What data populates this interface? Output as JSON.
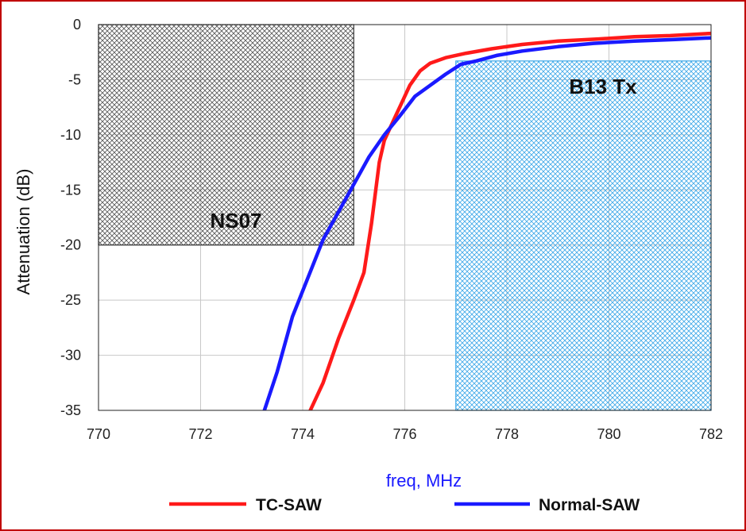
{
  "chart_data": {
    "type": "line",
    "title": "",
    "xlabel": "freq, MHz",
    "ylabel": "Attenuation (dB)",
    "xlim": [
      770,
      782
    ],
    "ylim": [
      -35,
      0
    ],
    "xticks": [
      770,
      772,
      774,
      776,
      778,
      780,
      782
    ],
    "yticks": [
      0,
      -5,
      -10,
      -15,
      -20,
      -25,
      -30,
      -35
    ],
    "grid": true,
    "legend_position": "bottom",
    "series": [
      {
        "name": "TC-SAW",
        "color": "#ff1a1a",
        "x": [
          774.15,
          774.4,
          774.7,
          775.0,
          775.2,
          775.35,
          775.5,
          775.6,
          775.8,
          775.95,
          776.1,
          776.3,
          776.5,
          776.8,
          777.2,
          777.7,
          778.3,
          779.0,
          779.8,
          780.5,
          781.2,
          782.0
        ],
        "y": [
          -35,
          -32.5,
          -28.5,
          -25,
          -22.5,
          -18,
          -12.5,
          -10.5,
          -8.5,
          -7,
          -5.5,
          -4.2,
          -3.5,
          -3.0,
          -2.6,
          -2.2,
          -1.8,
          -1.5,
          -1.3,
          -1.1,
          -1.0,
          -0.8
        ]
      },
      {
        "name": "Normal-SAW",
        "color": "#1a1aff",
        "x": [
          773.25,
          773.5,
          773.8,
          774.1,
          774.4,
          774.7,
          775.0,
          775.3,
          775.6,
          775.9,
          776.2,
          776.5,
          776.8,
          777.1,
          777.4,
          777.8,
          778.3,
          779.0,
          779.7,
          780.5,
          781.3,
          782.0
        ],
        "y": [
          -35,
          -31.5,
          -26.5,
          -23,
          -19.5,
          -17,
          -14.5,
          -12,
          -10,
          -8.3,
          -6.5,
          -5.5,
          -4.5,
          -3.6,
          -3.3,
          -2.8,
          -2.4,
          -2.0,
          -1.7,
          -1.5,
          -1.35,
          -1.2
        ]
      }
    ],
    "regions": [
      {
        "name": "NS07",
        "color": "#333333",
        "x": [
          770,
          775
        ],
        "y": [
          -20,
          0
        ],
        "label": "NS07"
      },
      {
        "name": "B13 Tx",
        "color": "#3ba7e8",
        "x": [
          777,
          782
        ],
        "y": [
          -35,
          -3.3
        ],
        "label": "B13 Tx"
      }
    ]
  }
}
